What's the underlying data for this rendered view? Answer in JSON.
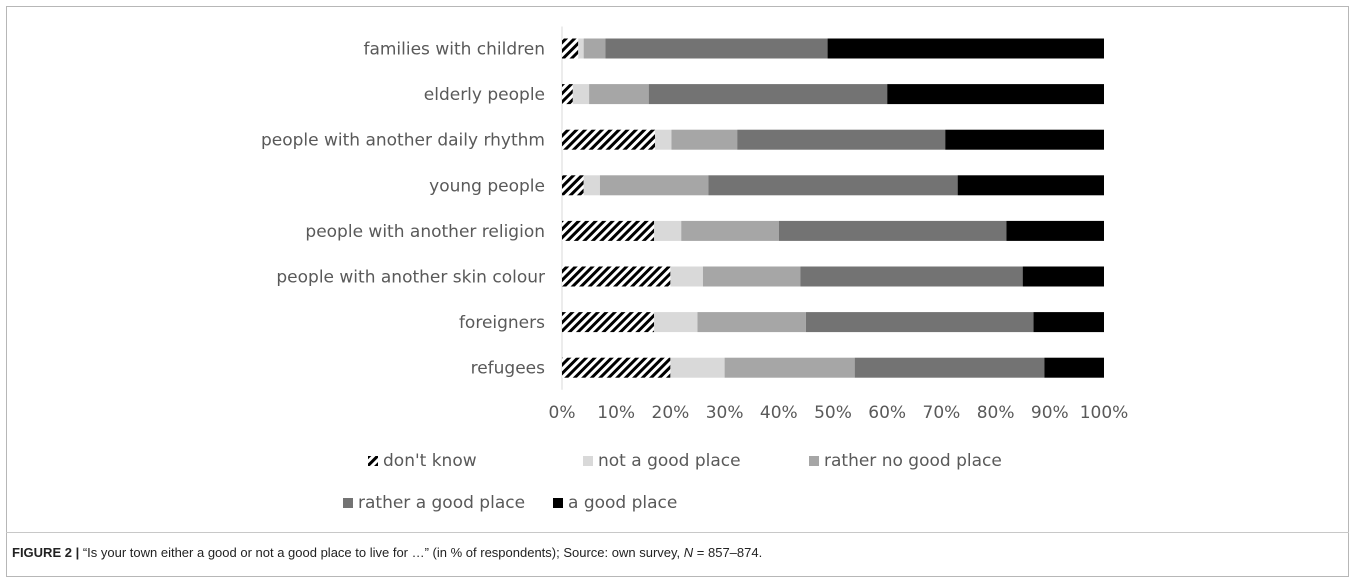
{
  "colors": {
    "dont_know": "hatch-black",
    "not_good": "#d9d9d9",
    "rather_no_good": "#a6a6a6",
    "rather_good": "#737373",
    "good": "#000000"
  },
  "chart_data": {
    "type": "bar",
    "orientation": "horizontal",
    "stacked": "percent",
    "categories": [
      "families with children",
      "elderly people",
      "people with another daily rhythm",
      "young people",
      "people with another religion",
      "people with another skin colour",
      "foreigners",
      "refugees"
    ],
    "series": [
      {
        "name": "don't know",
        "pattern": "hatch",
        "color": "#000000",
        "values": [
          3,
          2,
          17,
          4,
          17,
          20,
          17,
          20
        ]
      },
      {
        "name": "not a good place",
        "color": "#d9d9d9",
        "values": [
          1,
          3,
          3,
          3,
          5,
          6,
          8,
          10
        ]
      },
      {
        "name": "rather no good place",
        "color": "#a6a6a6",
        "values": [
          4,
          11,
          12,
          20,
          18,
          18,
          20,
          24
        ]
      },
      {
        "name": "rather a good place",
        "color": "#737373",
        "values": [
          41,
          44,
          38,
          46,
          42,
          41,
          42,
          35
        ]
      },
      {
        "name": "a good place",
        "color": "#000000",
        "values": [
          51,
          40,
          29,
          27,
          18,
          15,
          13,
          11
        ]
      }
    ],
    "xlim": [
      0,
      100
    ],
    "xticks": [
      "0%",
      "10%",
      "20%",
      "30%",
      "40%",
      "50%",
      "60%",
      "70%",
      "80%",
      "90%",
      "100%"
    ],
    "grid": false,
    "legend_position": "bottom",
    "xlabel": "",
    "ylabel": ""
  },
  "caption": {
    "label": "FIGURE 2 |",
    "text_before_n": " “Is your town either a good or not a good place to live for …” (in % of respondents); Source: own survey, ",
    "n_symbol": "N",
    "text_after_n": " = 857–874."
  }
}
